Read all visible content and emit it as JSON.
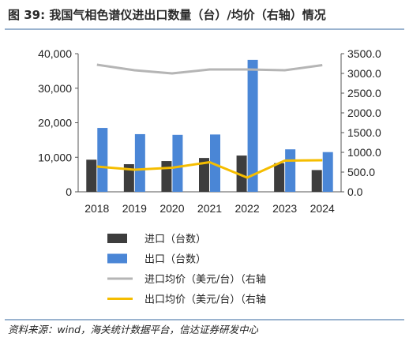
{
  "header": {
    "title": "图 39:  我国气相色谱仪进出口数量（台）/均价（右轴）情况"
  },
  "footer": {
    "source": "资料来源：wind，海关统计数据平台，信达证券研发中心"
  },
  "chart_data": {
    "type": "bar",
    "categories": [
      "2018",
      "2019",
      "2020",
      "2021",
      "2022",
      "2023",
      "2024"
    ],
    "y_left": {
      "min": 0,
      "max": 40000,
      "ticks": [
        "0",
        "10,000",
        "20,000",
        "30,000",
        "40,000"
      ]
    },
    "y_right": {
      "min": 0,
      "max": 3500,
      "ticks": [
        "0.0",
        "500.0",
        "1000.0",
        "1500.0",
        "2000.0",
        "2500.0",
        "3000.0",
        "3500.0"
      ]
    },
    "grid": false,
    "legend_placement": "bottom",
    "series": [
      {
        "name": "进口（台数）",
        "type": "bar",
        "axis": "left",
        "color": "#3d3d3d",
        "values": [
          9300,
          8000,
          8900,
          9800,
          10500,
          8300,
          6300
        ]
      },
      {
        "name": "出口（台数）",
        "type": "bar",
        "axis": "left",
        "color": "#4a86d6",
        "values": [
          18500,
          16700,
          16500,
          16600,
          38200,
          12300,
          11500
        ]
      },
      {
        "name": "进口均价（美元/台）（右轴",
        "type": "line",
        "axis": "right",
        "color": "#b5b5b5",
        "values": [
          3220,
          3080,
          3000,
          3100,
          3100,
          3080,
          3210
        ]
      },
      {
        "name": "出口均价（美元/台）（右轴",
        "type": "line",
        "axis": "right",
        "color": "#f5bd00",
        "values": [
          640,
          560,
          610,
          750,
          360,
          790,
          800
        ]
      }
    ]
  }
}
